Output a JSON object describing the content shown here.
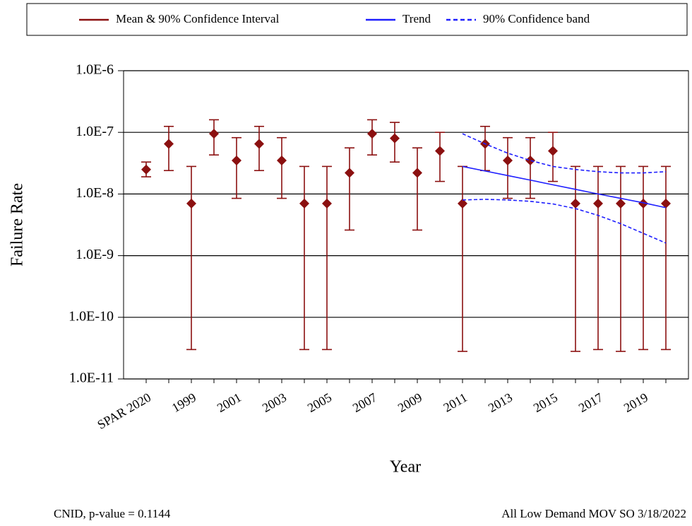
{
  "chart_data": {
    "type": "errorbar",
    "y_label": "Failure Rate",
    "x_label": "Year",
    "footer_left": "CNID, p-value = 0.1144",
    "footer_right": "All Low Demand MOV SO 3/18/2022",
    "log_y": true,
    "grid": true,
    "legend_position": "top",
    "categories": [
      "SPAR 2020",
      null,
      "1999",
      null,
      "2001",
      null,
      "2003",
      null,
      "2005",
      null,
      "2007",
      null,
      "2009",
      null,
      "2011",
      null,
      "2013",
      null,
      "2015",
      null,
      "2017",
      null,
      "2019",
      null
    ],
    "ylim": [
      1e-11,
      1e-06
    ],
    "yticks": [
      {
        "value": 1e-11,
        "label": "1.0E-11"
      },
      {
        "value": 1e-10,
        "label": "1.0E-10"
      },
      {
        "value": 1e-09,
        "label": "1.0E-9"
      },
      {
        "value": 1e-08,
        "label": "1.0E-8"
      },
      {
        "value": 1e-07,
        "label": "1.0E-7"
      },
      {
        "value": 1e-06,
        "label": "1.0E-6"
      }
    ],
    "series": [
      {
        "name": "Mean & 90% Confidence Interval",
        "color": "#8b1010",
        "values": [
          2.5e-08,
          6.5e-08,
          7e-09,
          9.5e-08,
          3.5e-08,
          6.5e-08,
          3.5e-08,
          7e-09,
          7e-09,
          2.2e-08,
          9.5e-08,
          8e-08,
          2.2e-08,
          5e-08,
          7e-09,
          6.5e-08,
          3.5e-08,
          3.5e-08,
          5e-08,
          7e-09,
          7e-09,
          7e-09,
          7e-09,
          7e-09
        ],
        "lower": [
          1.9e-08,
          2.4e-08,
          3e-11,
          4.3e-08,
          8.5e-09,
          2.4e-08,
          8.5e-09,
          3e-11,
          3e-11,
          2.6e-09,
          4.3e-08,
          3.3e-08,
          2.6e-09,
          1.6e-08,
          2.8e-11,
          2.4e-08,
          8.5e-09,
          8.5e-09,
          1.6e-08,
          2.8e-11,
          3e-11,
          2.8e-11,
          3e-11,
          3e-11
        ],
        "upper": [
          3.3e-08,
          1.25e-07,
          2.8e-08,
          1.6e-07,
          8.2e-08,
          1.25e-07,
          8.2e-08,
          2.8e-08,
          2.8e-08,
          5.6e-08,
          1.6e-07,
          1.45e-07,
          5.6e-08,
          1e-07,
          2.8e-08,
          1.25e-07,
          8.2e-08,
          8.2e-08,
          1e-07,
          2.8e-08,
          2.8e-08,
          2.8e-08,
          2.8e-08,
          2.8e-08
        ]
      },
      {
        "name": "Trend",
        "color": "#1f1fff",
        "values": [
          null,
          null,
          null,
          null,
          null,
          null,
          null,
          null,
          null,
          null,
          null,
          null,
          null,
          null,
          2.8e-08,
          2.36e-08,
          1.99e-08,
          1.68e-08,
          1.41e-08,
          1.19e-08,
          1e-08,
          8.5e-09,
          7.2e-09,
          6e-09
        ]
      },
      {
        "name": "90% Confidence band",
        "color": "#1f1fff",
        "dashed": true,
        "upper": [
          null,
          null,
          null,
          null,
          null,
          null,
          null,
          null,
          null,
          null,
          null,
          null,
          null,
          null,
          9.5e-08,
          6.5e-08,
          4.6e-08,
          3.5e-08,
          2.8e-08,
          2.5e-08,
          2.3e-08,
          2.2e-08,
          2.2e-08,
          2.3e-08
        ],
        "lower": [
          null,
          null,
          null,
          null,
          null,
          null,
          null,
          null,
          null,
          null,
          null,
          null,
          null,
          null,
          8e-09,
          8.2e-09,
          8e-09,
          7.6e-09,
          6.9e-09,
          5.8e-09,
          4.5e-09,
          3.3e-09,
          2.3e-09,
          1.6e-09
        ]
      }
    ]
  }
}
